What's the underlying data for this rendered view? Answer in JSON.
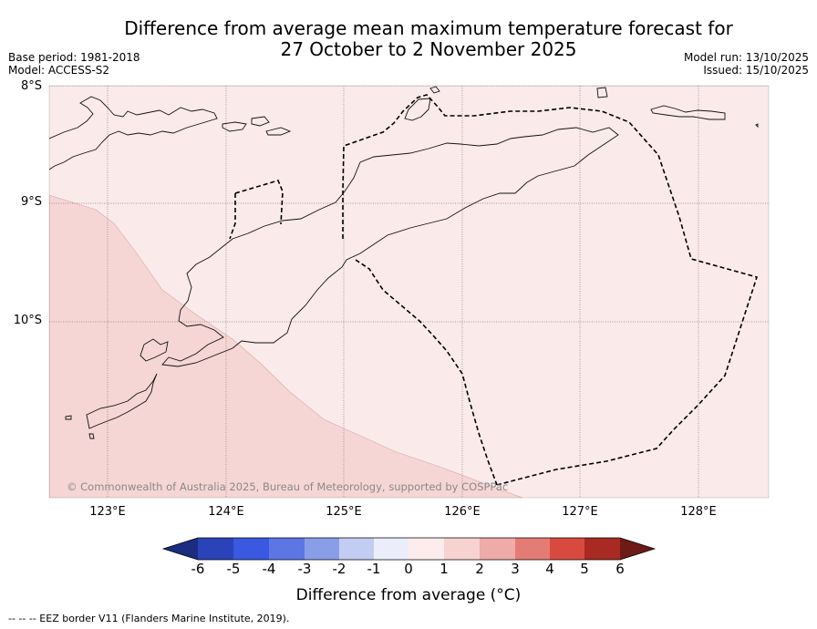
{
  "title_line1": "Difference from average mean maximum temperature forecast for",
  "title_line2": "27 October to 2 November 2025",
  "base_period": "Base period: 1981-2018",
  "model": "Model: ACCESS-S2",
  "model_run": "Model run: 13/10/2025",
  "issued": "Issued: 15/10/2025",
  "lat_labels": [
    "8°S",
    "9°S",
    "10°S"
  ],
  "lon_labels": [
    "123°E",
    "124°E",
    "125°E",
    "126°E",
    "127°E",
    "128°E"
  ],
  "colorbar": {
    "ticks": [
      "-6",
      "-5",
      "-4",
      "-3",
      "-2",
      "-1",
      "0",
      "1",
      "2",
      "3",
      "4",
      "5",
      "6"
    ],
    "colors": [
      "#1a2d80",
      "#2a43b8",
      "#3a58e0",
      "#5c76e4",
      "#8a9ee8",
      "#c3ccf2",
      "#ebeefa",
      "#fcecec",
      "#f6d2d0",
      "#eeaba7",
      "#e47c76",
      "#d84a40",
      "#a82a22",
      "#6e1a16"
    ],
    "title": "Difference from average (°C)"
  },
  "map": {
    "fill_colors": {
      "zone_0_to_1": "#fbeaea",
      "zone_1_to_2": "#f5d6d4"
    },
    "zones": [
      {
        "range": "0 to 1",
        "color": "#fbeaea"
      },
      {
        "range": "1 to 2",
        "color": "#f5d6d4"
      }
    ]
  },
  "copyright": "© Commonwealth of Australia 2025, Bureau of Meteorology, supported by COSPPac",
  "footer": "-- -- -- EEZ border V11 (Flanders Marine Institute, 2019)."
}
